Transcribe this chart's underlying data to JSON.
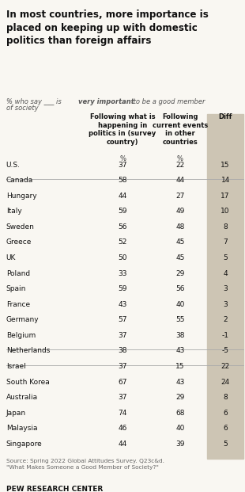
{
  "title": "In most countries, more importance is\nplaced on keeping up with domestic\npolitics than foreign affairs",
  "col1_header": "Following what is\nhappening in\npolitics in (survey\ncountry)",
  "col2_header": "Following\ncurrent events\nin other\ncountries",
  "col3_header": "Diff",
  "countries": [
    "U.S.",
    "Canada",
    "Hungary",
    "Italy",
    "Sweden",
    "Greece",
    "UK",
    "Poland",
    "Spain",
    "France",
    "Germany",
    "Belgium",
    "Netherlands",
    "Israel",
    "South Korea",
    "Australia",
    "Japan",
    "Malaysia",
    "Singapore"
  ],
  "col1_vals": [
    37,
    58,
    44,
    59,
    56,
    52,
    50,
    33,
    59,
    43,
    57,
    37,
    38,
    37,
    67,
    37,
    74,
    46,
    44
  ],
  "col2_vals": [
    22,
    44,
    27,
    49,
    48,
    45,
    45,
    29,
    56,
    40,
    55,
    38,
    43,
    15,
    43,
    29,
    68,
    40,
    39
  ],
  "diff_vals": [
    15,
    14,
    17,
    10,
    8,
    7,
    5,
    4,
    3,
    3,
    2,
    -1,
    -5,
    22,
    24,
    8,
    6,
    6,
    5
  ],
  "separator_after": [
    1,
    12,
    13
  ],
  "diff_bg_color": "#cdc5b4",
  "source_text": "Source: Spring 2022 Global Attitudes Survey. Q23c&d.\n\"What Makes Someone a Good Member of Society?\"",
  "footer": "PEW RESEARCH CENTER",
  "bg_color": "#f9f7f2",
  "title_color": "#111111",
  "body_color": "#111111",
  "separator_color": "#aaaaaa"
}
